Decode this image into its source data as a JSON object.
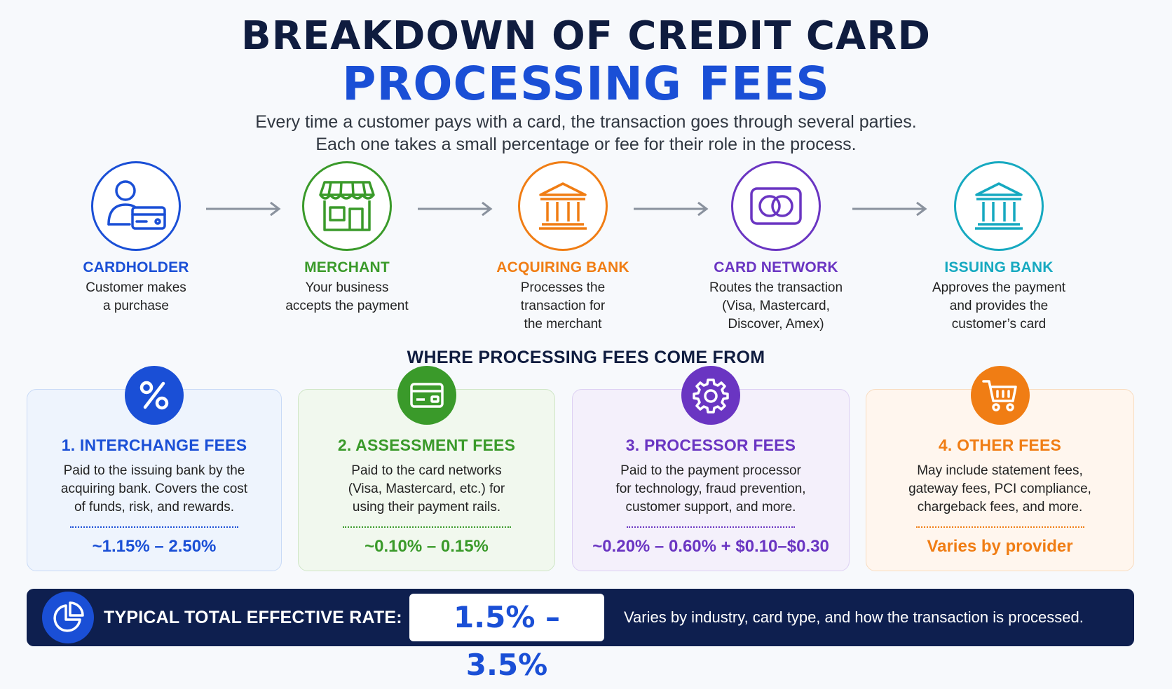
{
  "header": {
    "title_line1": "BREAKDOWN OF CREDIT CARD",
    "title_line2": "PROCESSING FEES",
    "subtitle_line1": "Every time a customer pays with a card, the transaction goes through several parties.",
    "subtitle_line2": "Each one takes a small percentage or fee for their role in the process."
  },
  "flow": [
    {
      "title": "CARDHOLDER",
      "desc": [
        "Customer makes",
        "a purchase"
      ],
      "color": "#1a4fd6",
      "icon": "cardholder-icon"
    },
    {
      "title": "MERCHANT",
      "desc": [
        "Your business",
        "accepts the payment"
      ],
      "color": "#3a9a2a",
      "icon": "storefront-icon"
    },
    {
      "title": "ACQUIRING BANK",
      "desc": [
        "Processes the",
        "transaction for",
        "the merchant"
      ],
      "color": "#f07d14",
      "icon": "bank-icon"
    },
    {
      "title": "CARD NETWORK",
      "desc": [
        "Routes the transaction",
        "(Visa, Mastercard,",
        "Discover, Amex)"
      ],
      "color": "#6a35c2",
      "icon": "card-network-icon"
    },
    {
      "title": "ISSUING BANK",
      "desc": [
        "Approves the payment",
        "and provides the",
        "customer’s card"
      ],
      "color": "#16a9c0",
      "icon": "bank-icon"
    }
  ],
  "section_title": "WHERE PROCESSING FEES COME FROM",
  "fees": [
    {
      "title": "1. INTERCHANGE FEES",
      "desc": [
        "Paid to the issuing bank by the",
        "acquiring bank. Covers the cost",
        "of funds, risk, and rewards."
      ],
      "value": "~1.15% – 2.50%",
      "color": "#1a4fd6",
      "bg": "#eef4fd",
      "border": "#c9daf6",
      "icon": "percent-icon"
    },
    {
      "title": "2. ASSESSMENT FEES",
      "desc": [
        "Paid to the card networks",
        "(Visa, Mastercard, etc.) for",
        "using their payment rails."
      ],
      "value": "~0.10% – 0.15%",
      "color": "#3a9a2a",
      "bg": "#f1f8ee",
      "border": "#cfe6c6",
      "icon": "credit-card-icon"
    },
    {
      "title": "3. PROCESSOR FEES",
      "desc": [
        "Paid to the payment processor",
        "for technology, fraud prevention,",
        "customer support, and more."
      ],
      "value": "~0.20% – 0.60% + $0.10–$0.30",
      "color": "#6a35c2",
      "bg": "#f4f0fb",
      "border": "#ddd0f3",
      "icon": "gear-icon"
    },
    {
      "title": "4. OTHER FEES",
      "desc": [
        "May include statement fees,",
        "gateway fees, PCI compliance,",
        "chargeback fees, and more."
      ],
      "value": "Varies by provider",
      "color": "#f07d14",
      "bg": "#fff6ee",
      "border": "#f8dcc0",
      "icon": "shopping-cart-icon"
    }
  ],
  "bottom": {
    "label": "TYPICAL TOTAL EFFECTIVE RATE:",
    "rate": "1.5% – 3.5%",
    "note": "Varies by industry, card type, and how the transaction is processed.",
    "icon": "pie-chart-icon"
  }
}
